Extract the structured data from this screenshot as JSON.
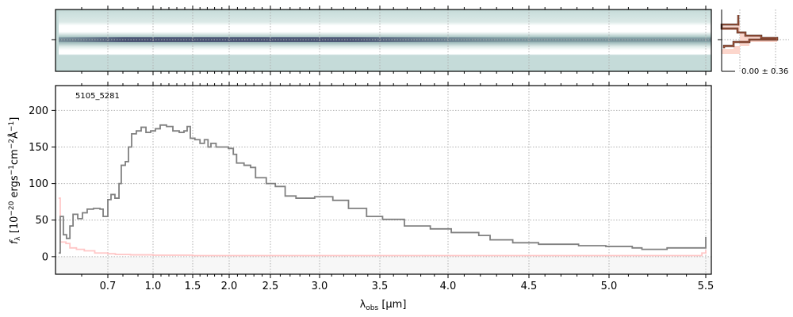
{
  "chart_data": {
    "type": "line",
    "object_label": "5105_5281",
    "xlabel": {
      "symbol": "λ",
      "sub": "obs",
      "unit": " [μm]"
    },
    "ylabel": {
      "f": "f",
      "sub": "λ",
      "p1": " [10",
      "e1": "−20",
      "p2": " ergs",
      "e2": "−1",
      "p3": "cm",
      "e3": "−2",
      "p4": "Å",
      "e4": "−1",
      "p5": "]"
    },
    "xlim": [
      0.5,
      5.52
    ],
    "ylim": [
      -24,
      234
    ],
    "x_ticks": [
      {
        "value": 0.7,
        "label": "0.7"
      },
      {
        "value": 1.0,
        "label": "1.0"
      },
      {
        "value": 1.5,
        "label": "1.5"
      },
      {
        "value": 2.0,
        "label": "2.0"
      },
      {
        "value": 2.5,
        "label": "2.5"
      },
      {
        "value": 3.0,
        "label": "3.0"
      },
      {
        "value": 3.5,
        "label": "3.5"
      },
      {
        "value": 4.0,
        "label": "4.0"
      },
      {
        "value": 4.5,
        "label": "4.5"
      },
      {
        "value": 5.0,
        "label": "5.0"
      },
      {
        "value": 5.5,
        "label": "5.5"
      }
    ],
    "y_ticks": [
      {
        "value": 0,
        "label": "0"
      },
      {
        "value": 50,
        "label": "50"
      },
      {
        "value": 100,
        "label": "100"
      },
      {
        "value": 150,
        "label": "150"
      },
      {
        "value": 200,
        "label": "200"
      }
    ],
    "grid": true,
    "series": [
      {
        "name": "flux",
        "color": "#808080",
        "x": [
          0.512,
          0.518,
          0.53,
          0.542,
          0.555,
          0.567,
          0.585,
          0.603,
          0.621,
          0.645,
          0.67,
          0.682,
          0.7,
          0.721,
          0.747,
          0.774,
          0.789,
          0.816,
          0.837,
          0.858,
          0.889,
          0.921,
          0.953,
          0.984,
          1.03,
          1.09,
          1.17,
          1.25,
          1.33,
          1.39,
          1.43,
          1.47,
          1.53,
          1.6,
          1.66,
          1.71,
          1.75,
          1.82,
          1.9,
          1.99,
          2.05,
          2.09,
          2.18,
          2.26,
          2.32,
          2.39,
          2.45,
          2.55,
          2.65,
          2.76,
          2.95,
          3.11,
          3.24,
          3.39,
          3.52,
          3.68,
          3.87,
          4.02,
          4.19,
          4.26,
          4.4,
          4.56,
          4.81,
          4.98,
          5.12,
          5.17,
          5.3,
          5.48,
          5.5
        ],
        "y": [
          5,
          55,
          30,
          25,
          42,
          58,
          52,
          60,
          65,
          66,
          65,
          55,
          78,
          85,
          80,
          100,
          125,
          130,
          150,
          168,
          172,
          177,
          170,
          172,
          175,
          180,
          178,
          172,
          170,
          172,
          178,
          162,
          160,
          155,
          160,
          150,
          155,
          150,
          150,
          148,
          140,
          128,
          125,
          122,
          108,
          108,
          100,
          96,
          83,
          80,
          82,
          77,
          66,
          55,
          51,
          42,
          38,
          33,
          29,
          23,
          19,
          17,
          15,
          14,
          12,
          10,
          12,
          12,
          27
        ]
      },
      {
        "name": "error",
        "color": "#ffc0c0",
        "x": [
          0.512,
          0.518,
          0.54,
          0.555,
          0.58,
          0.61,
          0.65,
          0.7,
          0.75,
          0.85,
          1.0,
          1.5,
          2.0,
          3.0,
          4.0,
          5.0,
          5.45,
          5.48,
          5.5
        ],
        "y": [
          80,
          20,
          18,
          12,
          10,
          8,
          5,
          4,
          3,
          2.5,
          2,
          1.5,
          1.5,
          1.5,
          1.5,
          1.5,
          1.5,
          5,
          9
        ]
      }
    ]
  },
  "profile_panel": {
    "label": "0.00 ± 0.36"
  }
}
